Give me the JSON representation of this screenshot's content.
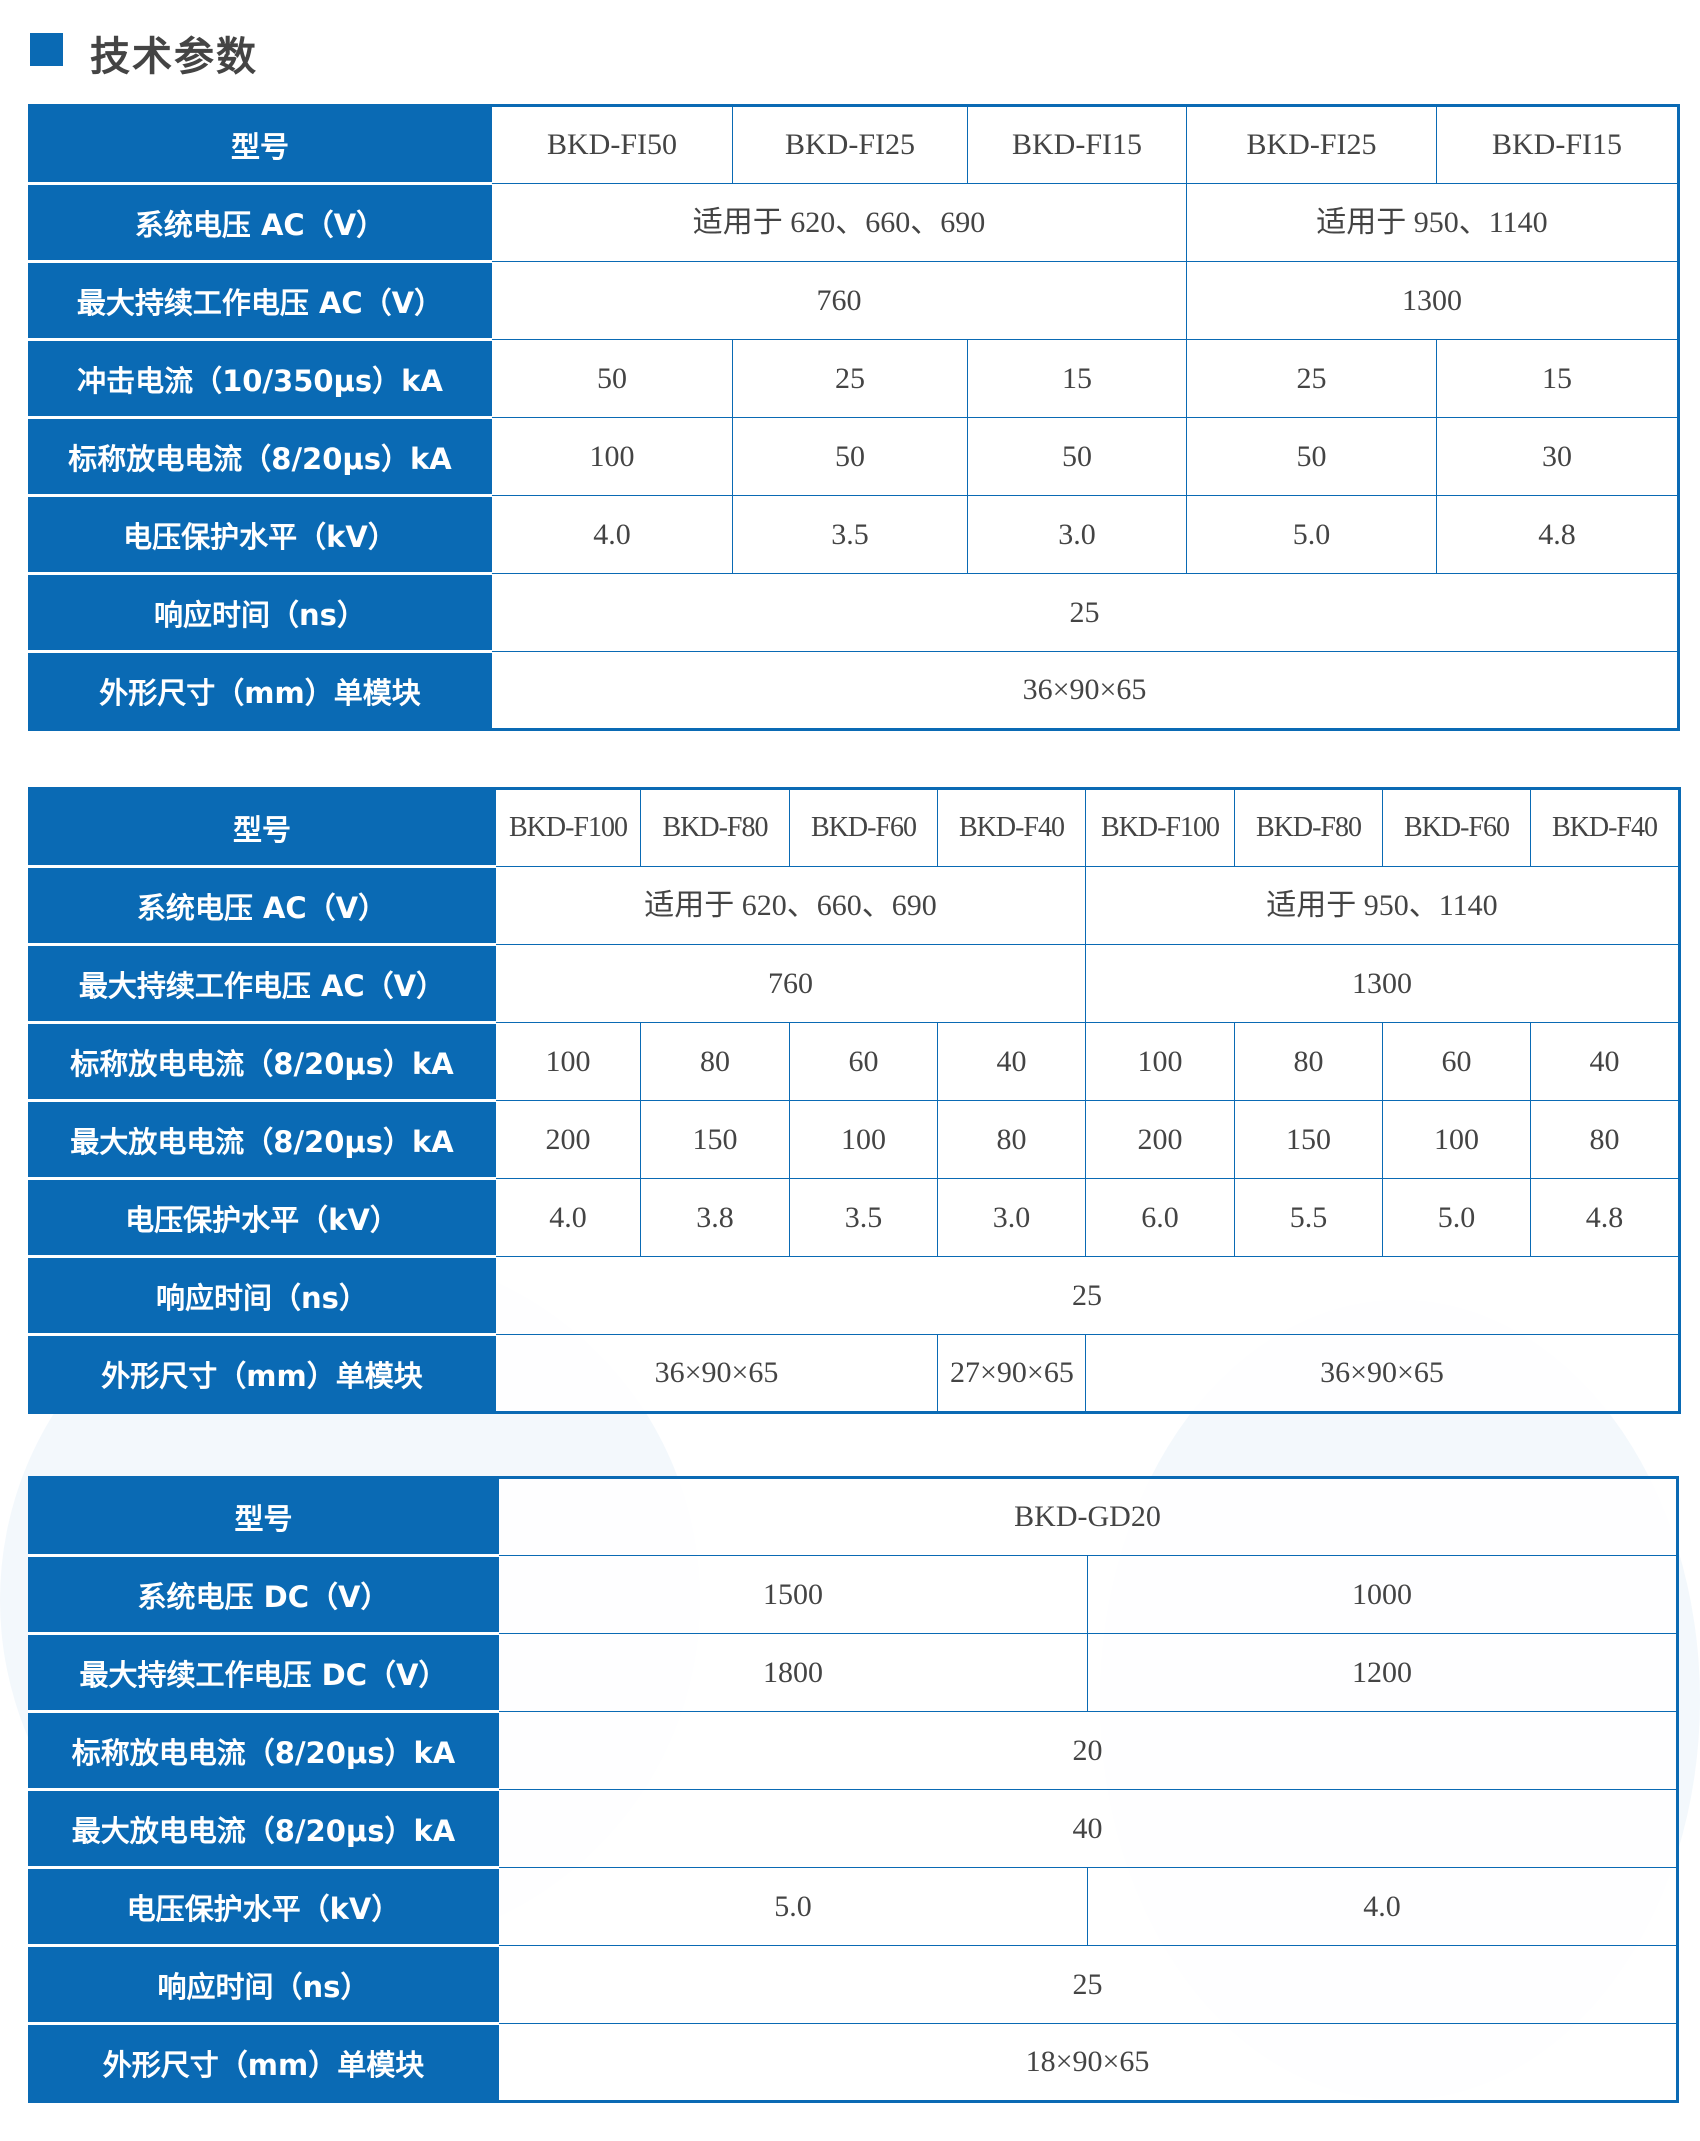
{
  "section_title": "技术参数",
  "colors": {
    "accent": "#0a6ab4",
    "text": "#444444",
    "header_text": "#ffffff"
  },
  "tables": [
    {
      "rows": [
        {
          "label": "型号",
          "cells": [
            {
              "text": "BKD-FI50",
              "span": 1
            },
            {
              "text": "BKD-FI25",
              "span": 1
            },
            {
              "text": "BKD-FI15",
              "span": 1
            },
            {
              "text": "BKD-FI25",
              "span": 1
            },
            {
              "text": "BKD-FI15",
              "span": 1
            }
          ]
        },
        {
          "label": "系统电压 AC（V）",
          "cells": [
            {
              "text": "适用于 620、660、690",
              "span": 3
            },
            {
              "text": "适用于 950、1140",
              "span": 2
            }
          ]
        },
        {
          "label": "最大持续工作电压 AC（V）",
          "cells": [
            {
              "text": "760",
              "span": 3
            },
            {
              "text": "1300",
              "span": 2
            }
          ]
        },
        {
          "label": "冲击电流（10/350μs）kA",
          "cells": [
            {
              "text": "50",
              "span": 1
            },
            {
              "text": "25",
              "span": 1
            },
            {
              "text": "15",
              "span": 1
            },
            {
              "text": "25",
              "span": 1
            },
            {
              "text": "15",
              "span": 1
            }
          ]
        },
        {
          "label": "标称放电电流（8/20μs）kA",
          "cells": [
            {
              "text": "100",
              "span": 1
            },
            {
              "text": "50",
              "span": 1
            },
            {
              "text": "50",
              "span": 1
            },
            {
              "text": "50",
              "span": 1
            },
            {
              "text": "30",
              "span": 1
            }
          ]
        },
        {
          "label": "电压保护水平（kV）",
          "cells": [
            {
              "text": "4.0",
              "span": 1
            },
            {
              "text": "3.5",
              "span": 1
            },
            {
              "text": "3.0",
              "span": 1
            },
            {
              "text": "5.0",
              "span": 1
            },
            {
              "text": "4.8",
              "span": 1
            }
          ]
        },
        {
          "label": "响应时间（ns）",
          "cells": [
            {
              "text": "25",
              "span": 5
            }
          ]
        },
        {
          "label": "外形尺寸（mm）单模块",
          "cells": [
            {
              "text": "36×90×65",
              "span": 5
            }
          ]
        }
      ]
    },
    {
      "rows": [
        {
          "label": "型号",
          "cells": [
            {
              "text": "BKD-F100",
              "span": 1
            },
            {
              "text": "BKD-F80",
              "span": 1
            },
            {
              "text": "BKD-F60",
              "span": 1
            },
            {
              "text": "BKD-F40",
              "span": 1
            },
            {
              "text": "BKD-F100",
              "span": 1
            },
            {
              "text": "BKD-F80",
              "span": 1
            },
            {
              "text": "BKD-F60",
              "span": 1
            },
            {
              "text": "BKD-F40",
              "span": 1
            }
          ]
        },
        {
          "label": "系统电压 AC（V）",
          "cells": [
            {
              "text": "适用于 620、660、690",
              "span": 4
            },
            {
              "text": "适用于 950、1140",
              "span": 4
            }
          ]
        },
        {
          "label": "最大持续工作电压 AC（V）",
          "cells": [
            {
              "text": "760",
              "span": 4
            },
            {
              "text": "1300",
              "span": 4
            }
          ]
        },
        {
          "label": "标称放电电流（8/20μs）kA",
          "cells": [
            {
              "text": "100",
              "span": 1
            },
            {
              "text": "80",
              "span": 1
            },
            {
              "text": "60",
              "span": 1
            },
            {
              "text": "40",
              "span": 1
            },
            {
              "text": "100",
              "span": 1
            },
            {
              "text": "80",
              "span": 1
            },
            {
              "text": "60",
              "span": 1
            },
            {
              "text": "40",
              "span": 1
            }
          ]
        },
        {
          "label": "最大放电电流（8/20μs）kA",
          "cells": [
            {
              "text": "200",
              "span": 1
            },
            {
              "text": "150",
              "span": 1
            },
            {
              "text": "100",
              "span": 1
            },
            {
              "text": "80",
              "span": 1
            },
            {
              "text": "200",
              "span": 1
            },
            {
              "text": "150",
              "span": 1
            },
            {
              "text": "100",
              "span": 1
            },
            {
              "text": "80",
              "span": 1
            }
          ]
        },
        {
          "label": "电压保护水平（kV）",
          "cells": [
            {
              "text": "4.0",
              "span": 1
            },
            {
              "text": "3.8",
              "span": 1
            },
            {
              "text": "3.5",
              "span": 1
            },
            {
              "text": "3.0",
              "span": 1
            },
            {
              "text": "6.0",
              "span": 1
            },
            {
              "text": "5.5",
              "span": 1
            },
            {
              "text": "5.0",
              "span": 1
            },
            {
              "text": "4.8",
              "span": 1
            }
          ]
        },
        {
          "label": "响应时间（ns）",
          "cells": [
            {
              "text": "25",
              "span": 8
            }
          ]
        },
        {
          "label": "外形尺寸（mm）单模块",
          "cells": [
            {
              "text": "36×90×65",
              "span": 3
            },
            {
              "text": "27×90×65",
              "span": 1
            },
            {
              "text": "36×90×65",
              "span": 4
            }
          ]
        }
      ]
    },
    {
      "rows": [
        {
          "label": "型号",
          "cells": [
            {
              "text": "BKD-GD20",
              "span": 2
            }
          ]
        },
        {
          "label": "系统电压 DC（V）",
          "cells": [
            {
              "text": "1500",
              "span": 1
            },
            {
              "text": "1000",
              "span": 1
            }
          ]
        },
        {
          "label": "最大持续工作电压 DC（V）",
          "cells": [
            {
              "text": "1800",
              "span": 1
            },
            {
              "text": "1200",
              "span": 1
            }
          ]
        },
        {
          "label": "标称放电电流（8/20μs）kA",
          "cells": [
            {
              "text": "20",
              "span": 2
            }
          ]
        },
        {
          "label": "最大放电电流（8/20μs）kA",
          "cells": [
            {
              "text": "40",
              "span": 2
            }
          ]
        },
        {
          "label": "电压保护水平（kV）",
          "cells": [
            {
              "text": "5.0",
              "span": 1
            },
            {
              "text": "4.0",
              "span": 1
            }
          ]
        },
        {
          "label": "响应时间（ns）",
          "cells": [
            {
              "text": "25",
              "span": 2
            }
          ]
        },
        {
          "label": "外形尺寸（mm）单模块",
          "cells": [
            {
              "text": "18×90×65",
              "span": 2
            }
          ]
        }
      ]
    }
  ]
}
